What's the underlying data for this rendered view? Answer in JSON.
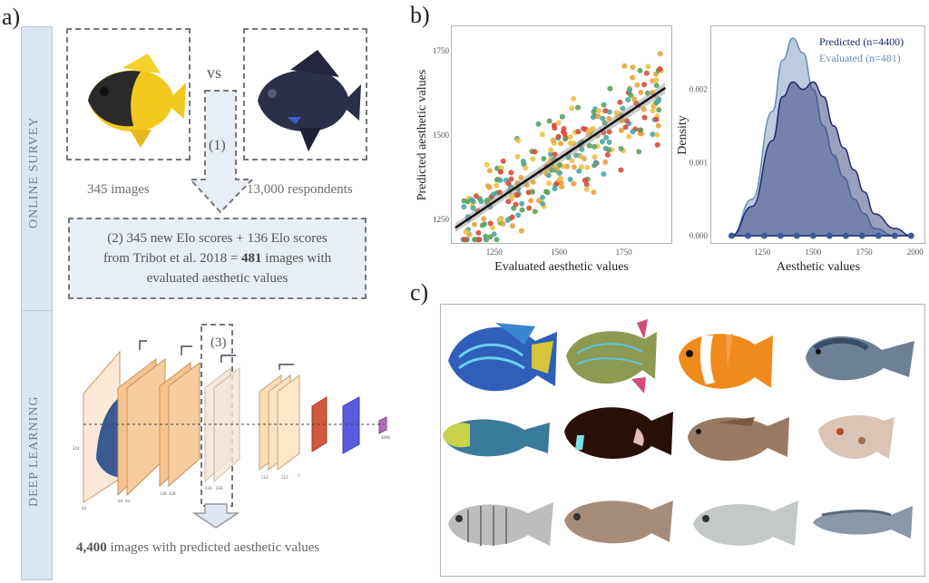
{
  "panels": {
    "a": "a)",
    "b": "b)",
    "c": "c)"
  },
  "survey": {
    "band_label": "ONLINE SURVEY",
    "vs_label": "vs",
    "step1_label": "(1)",
    "images_label": "345 images",
    "respondents_label": "13,000 respondents",
    "elo_line1": "(2) 345 new Elo scores + 136 Elo scores",
    "elo_line2_pre": "from Tribot et al. 2018 = ",
    "elo_line2_bold": "481",
    "elo_line2_post": " images with",
    "elo_line3": "evaluated aesthetic values"
  },
  "deep": {
    "band_label": "DEEP LEARNING",
    "step3_label": "(3)",
    "result_bold": "4,400",
    "result_rest": " images with predicted aesthetic values",
    "cnn_labels": [
      "224",
      "64",
      "64",
      "64",
      "128",
      "128",
      "256",
      "256",
      "512",
      "512",
      "1",
      "4096"
    ]
  },
  "colors": {
    "blue_band": "#dbe6f1",
    "predicted": "#1f2a6e",
    "evaluated": "#6b8cb8",
    "regression_line": "#111111",
    "scatter_palette": [
      "#e8a33a",
      "#4aa7a8",
      "#d64b3b",
      "#5ba262",
      "#f0c04a"
    ]
  },
  "chart_data": [
    {
      "type": "scatter",
      "title": "",
      "xlabel": "Evaluated aesthetic values",
      "ylabel": "Predicted aesthetic values",
      "xlim": [
        1090,
        1930
      ],
      "ylim": [
        1180,
        1820
      ],
      "x_ticks": [
        "1250",
        "1500",
        "1750"
      ],
      "y_ticks": [
        "1250",
        "1500",
        "1750"
      ],
      "regression": {
        "x": [
          1100,
          1910
        ],
        "y": [
          1225,
          1640
        ]
      },
      "n_points": 481
    },
    {
      "type": "area",
      "title": "",
      "xlabel": "Aesthetic values",
      "ylabel": "Density",
      "xlim": [
        1000,
        2050
      ],
      "ylim": [
        0,
        0.0028
      ],
      "x_ticks": [
        "1250",
        "1500",
        "1750",
        "2000"
      ],
      "y_ticks": [
        "0.000",
        "0.001",
        "0.002"
      ],
      "legend_position": "top-right",
      "x": [
        1100,
        1200,
        1300,
        1350,
        1400,
        1450,
        1500,
        1550,
        1600,
        1650,
        1700,
        1750,
        1800,
        1900,
        1980
      ],
      "series": [
        {
          "name": "Predicted (n=4400)",
          "values": [
            0.0,
            0.0004,
            0.0013,
            0.0019,
            0.0021,
            0.002,
            0.0021,
            0.0019,
            0.0015,
            0.0012,
            0.0009,
            0.0006,
            0.0003,
            0.0001,
            0.0
          ]
        },
        {
          "name": "Evaluated (n=481)",
          "values": [
            0.0,
            0.0005,
            0.0017,
            0.0024,
            0.0027,
            0.0025,
            0.002,
            0.0015,
            0.0011,
            0.0008,
            0.0005,
            0.0003,
            0.0001,
            0.0,
            0.0
          ]
        }
      ]
    }
  ]
}
